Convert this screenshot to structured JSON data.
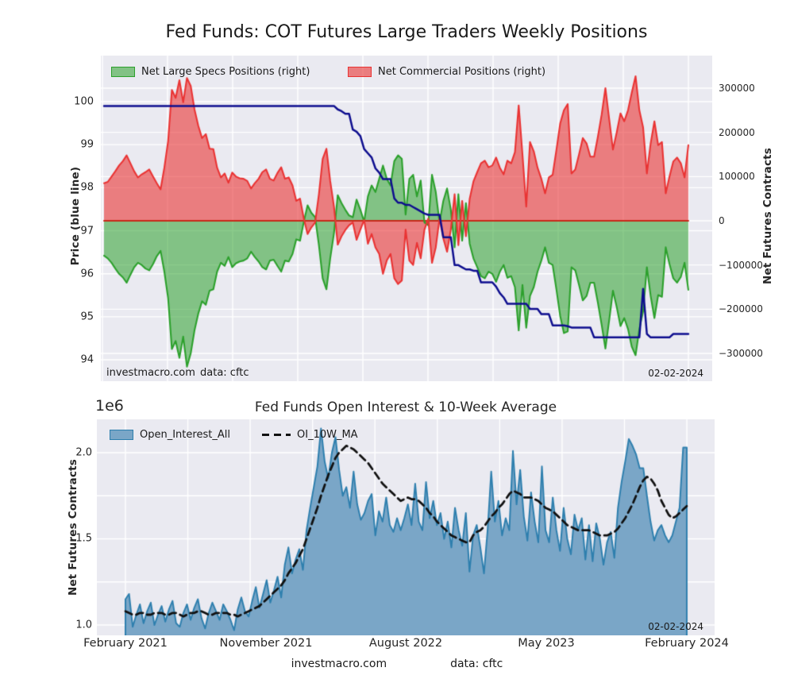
{
  "page_title": "Fed Funds: COT Futures Large Traders Weekly Positions",
  "footer": {
    "site": "investmacro.com",
    "source": "data: cftc"
  },
  "colors": {
    "plot_bg": "#eaeaf1",
    "grid": "#ffffff",
    "price_line": "#0d0d8e",
    "specs_line": "#2ca02c",
    "specs_fill": "rgba(44,160,44,0.55)",
    "commercials_line": "#e93333",
    "commercials_fill": "rgba(233,51,51,0.6)",
    "zero_line": "#c62818",
    "oi_line": "#2e7fae",
    "oi_fill": "#7aa6c7",
    "ma_line": "#111111"
  },
  "chart_data": [
    {
      "type": "area",
      "title": "Fed Funds: COT Futures Large Traders Weekly Positions",
      "ylabel_left": "Price (blue line)",
      "ylabel_right": "Net Futures Contracts",
      "yticks_left": [
        "100",
        "99",
        "98",
        "97",
        "96",
        "95",
        "94"
      ],
      "ytick_values_left": [
        100,
        99,
        98,
        97,
        96,
        95,
        94
      ],
      "yticks_right": [
        "300000",
        "200000",
        "100000",
        "0",
        "−100000",
        "−200000",
        "−300000"
      ],
      "ytick_values_right_thousands": [
        300,
        200,
        100,
        0,
        -100,
        -200,
        -300
      ],
      "x_range": "February 2021 – February 2024, weekly",
      "annotation_left": "investmacro.com",
      "annotation_source": "data: cftc",
      "annotation_date": "02-02-2024",
      "legend": [
        {
          "label": "Net Large Specs Positions (right)"
        },
        {
          "label": "Net Commercial Positions (right)"
        }
      ],
      "value_unit": "thousand contracts (right axis), price (left axis)",
      "series": [
        {
          "name": "Net Commercial Positions",
          "axis": "right",
          "values_thousands": [
            85,
            88,
            100,
            112,
            125,
            135,
            148,
            130,
            112,
            98,
            105,
            110,
            116,
            100,
            85,
            71,
            120,
            180,
            296,
            278,
            318,
            268,
            323,
            305,
            252,
            215,
            187,
            196,
            163,
            162,
            120,
            98,
            107,
            86,
            109,
            100,
            96,
            95,
            90,
            73,
            85,
            95,
            110,
            116,
            95,
            91,
            108,
            121,
            95,
            98,
            80,
            45,
            50,
            5,
            -30,
            -15,
            -4,
            60,
            140,
            163,
            90,
            32,
            -54,
            -35,
            -21,
            -10,
            -4,
            -43,
            -20,
            2,
            -52,
            -30,
            -60,
            -75,
            -120,
            -90,
            -75,
            -130,
            -143,
            -135,
            -20,
            -90,
            -100,
            -50,
            -85,
            -20,
            5,
            -95,
            -60,
            5,
            -40,
            -70,
            -20,
            60,
            -55,
            45,
            -35,
            50,
            89,
            110,
            130,
            136,
            121,
            125,
            143,
            120,
            105,
            136,
            130,
            155,
            261,
            150,
            32,
            178,
            157,
            120,
            95,
            62,
            98,
            104,
            160,
            220,
            250,
            264,
            107,
            116,
            150,
            187,
            175,
            145,
            145,
            190,
            240,
            300,
            230,
            161,
            200,
            243,
            225,
            250,
            290,
            327,
            250,
            211,
            107,
            175,
            225,
            171,
            178,
            62,
            100,
            134,
            143,
            130,
            98,
            171
          ]
        },
        {
          "name": "Net Large Specs Positions",
          "axis": "right",
          "values_thousands": [
            -79,
            -85,
            -95,
            -108,
            -120,
            -128,
            -140,
            -122,
            -105,
            -95,
            -100,
            -108,
            -112,
            -98,
            -80,
            -68,
            -115,
            -175,
            -290,
            -272,
            -310,
            -262,
            -330,
            -300,
            -248,
            -210,
            -182,
            -190,
            -158,
            -155,
            -115,
            -95,
            -102,
            -82,
            -105,
            -96,
            -92,
            -90,
            -85,
            -70,
            -82,
            -92,
            -105,
            -110,
            -90,
            -88,
            -102,
            -115,
            -90,
            -92,
            -75,
            -42,
            -45,
            -2,
            35,
            18,
            8,
            -55,
            -130,
            -155,
            -85,
            -28,
            58,
            40,
            25,
            12,
            8,
            48,
            25,
            -2,
            55,
            80,
            65,
            95,
            125,
            95,
            80,
            135,
            148,
            140,
            14,
            95,
            104,
            55,
            91,
            -4,
            -10,
            104,
            65,
            -4,
            45,
            73,
            25,
            -60,
            60,
            -45,
            40,
            -52,
            -85,
            -105,
            -125,
            -130,
            -115,
            -120,
            -138,
            -115,
            -100,
            -129,
            -125,
            -150,
            -248,
            -145,
            -242,
            -170,
            -150,
            -115,
            -90,
            -60,
            -95,
            -100,
            -155,
            -215,
            -254,
            -250,
            -105,
            -112,
            -145,
            -180,
            -170,
            -140,
            -140,
            -185,
            -235,
            -289,
            -225,
            -158,
            -195,
            -238,
            -220,
            -245,
            -285,
            -304,
            -245,
            -205,
            -105,
            -170,
            -220,
            -168,
            -172,
            -60,
            -98,
            -130,
            -140,
            -127,
            -95,
            -156
          ]
        },
        {
          "name": "Price",
          "axis": "left",
          "values": [
            99.9,
            99.9,
            99.9,
            99.9,
            99.9,
            99.9,
            99.9,
            99.9,
            99.9,
            99.9,
            99.9,
            99.9,
            99.9,
            99.9,
            99.9,
            99.9,
            99.9,
            99.9,
            99.9,
            99.9,
            99.9,
            99.9,
            99.9,
            99.9,
            99.9,
            99.9,
            99.9,
            99.9,
            99.9,
            99.9,
            99.9,
            99.9,
            99.9,
            99.9,
            99.9,
            99.9,
            99.9,
            99.9,
            99.9,
            99.9,
            99.9,
            99.9,
            99.9,
            99.9,
            99.9,
            99.9,
            99.9,
            99.9,
            99.9,
            99.9,
            99.9,
            99.9,
            99.9,
            99.9,
            99.9,
            99.9,
            99.9,
            99.9,
            99.9,
            99.9,
            99.9,
            99.9,
            99.82,
            99.78,
            99.72,
            99.72,
            99.35,
            99.3,
            99.2,
            98.9,
            98.8,
            98.7,
            98.45,
            98.35,
            98.2,
            98.2,
            98.2,
            97.75,
            97.65,
            97.65,
            97.6,
            97.6,
            97.55,
            97.5,
            97.45,
            97.4,
            97.37,
            97.37,
            97.37,
            97.37,
            96.85,
            96.85,
            96.85,
            96.2,
            96.2,
            96.15,
            96.1,
            96.1,
            96.07,
            96.07,
            95.8,
            95.8,
            95.8,
            95.8,
            95.7,
            95.55,
            95.45,
            95.3,
            95.3,
            95.3,
            95.3,
            95.3,
            95.3,
            95.18,
            95.18,
            95.18,
            95.06,
            95.06,
            95.06,
            94.8,
            94.8,
            94.8,
            94.8,
            94.78,
            94.75,
            94.75,
            94.75,
            94.75,
            94.75,
            94.75,
            94.52,
            94.52,
            94.52,
            94.52,
            94.52,
            94.52,
            94.52,
            94.52,
            94.52,
            94.52,
            94.52,
            94.52,
            94.52,
            95.65,
            94.6,
            94.52,
            94.52,
            94.52,
            94.52,
            94.52,
            94.52,
            94.6,
            94.6,
            94.6,
            94.6,
            94.6
          ]
        }
      ]
    },
    {
      "type": "area",
      "title": "Fed Funds Open Interest & 10-Week Average",
      "offset_text": "1e6",
      "ylabel": "Net Futures Contracts",
      "yticks": [
        "2.0",
        "1.5",
        "1.0"
      ],
      "ytick_values": [
        2.0,
        1.5,
        1.0
      ],
      "grid_y_values": [
        2.0,
        1.75,
        1.5,
        1.25,
        1.0
      ],
      "xticks": [
        "February 2021",
        "November 2021",
        "August 2022",
        "May 2023",
        "February 2024"
      ],
      "annotation_date": "02-02-2024",
      "legend": [
        {
          "label": "Open_Interest_All"
        },
        {
          "label": "OI_10W_MA"
        }
      ],
      "value_unit": "million contracts",
      "series": [
        {
          "name": "Open_Interest_All",
          "values_millions": [
            1.15,
            1.18,
            0.99,
            1.06,
            1.12,
            1.01,
            1.08,
            1.13,
            1.0,
            1.06,
            1.11,
            1.02,
            1.09,
            1.14,
            1.01,
            0.99,
            1.07,
            1.12,
            1.03,
            1.1,
            1.15,
            1.04,
            0.98,
            1.07,
            1.13,
            1.08,
            1.03,
            1.12,
            1.08,
            1.03,
            0.97,
            1.09,
            1.16,
            1.08,
            1.05,
            1.14,
            1.22,
            1.1,
            1.18,
            1.26,
            1.13,
            1.2,
            1.28,
            1.16,
            1.35,
            1.45,
            1.3,
            1.38,
            1.44,
            1.32,
            1.55,
            1.68,
            1.8,
            1.92,
            2.14,
            1.95,
            1.85,
            2.0,
            2.09,
            1.9,
            1.75,
            1.8,
            1.68,
            1.89,
            1.7,
            1.61,
            1.65,
            1.72,
            1.76,
            1.52,
            1.66,
            1.6,
            1.74,
            1.58,
            1.54,
            1.62,
            1.55,
            1.62,
            1.7,
            1.58,
            1.82,
            1.6,
            1.55,
            1.83,
            1.62,
            1.72,
            1.58,
            1.65,
            1.5,
            1.6,
            1.45,
            1.68,
            1.55,
            1.46,
            1.65,
            1.31,
            1.52,
            1.58,
            1.45,
            1.3,
            1.55,
            1.89,
            1.6,
            1.72,
            1.52,
            1.62,
            1.55,
            2.01,
            1.7,
            1.9,
            1.63,
            1.49,
            1.77,
            1.6,
            1.48,
            1.92,
            1.55,
            1.48,
            1.74,
            1.55,
            1.43,
            1.68,
            1.5,
            1.41,
            1.64,
            1.55,
            1.62,
            1.38,
            1.58,
            1.37,
            1.59,
            1.5,
            1.35,
            1.48,
            1.54,
            1.39,
            1.68,
            1.83,
            1.95,
            2.08,
            2.04,
            1.99,
            1.91,
            1.91,
            1.75,
            1.6,
            1.49,
            1.55,
            1.58,
            1.52,
            1.48,
            1.52,
            1.6,
            1.68,
            2.03,
            2.03
          ]
        },
        {
          "name": "OI_10W_MA",
          "values_millions": [
            1.08,
            1.07,
            1.06,
            1.06,
            1.07,
            1.07,
            1.06,
            1.06,
            1.07,
            1.07,
            1.07,
            1.06,
            1.06,
            1.07,
            1.07,
            1.06,
            1.05,
            1.06,
            1.07,
            1.07,
            1.08,
            1.08,
            1.07,
            1.06,
            1.06,
            1.07,
            1.07,
            1.07,
            1.07,
            1.06,
            1.06,
            1.05,
            1.06,
            1.07,
            1.08,
            1.09,
            1.1,
            1.11,
            1.13,
            1.15,
            1.17,
            1.19,
            1.21,
            1.23,
            1.26,
            1.3,
            1.33,
            1.36,
            1.4,
            1.44,
            1.5,
            1.56,
            1.62,
            1.68,
            1.75,
            1.81,
            1.87,
            1.92,
            1.97,
            2.0,
            2.02,
            2.04,
            2.03,
            2.02,
            2.0,
            1.98,
            1.96,
            1.94,
            1.91,
            1.88,
            1.85,
            1.82,
            1.8,
            1.78,
            1.76,
            1.74,
            1.72,
            1.73,
            1.74,
            1.73,
            1.73,
            1.72,
            1.7,
            1.68,
            1.65,
            1.63,
            1.6,
            1.58,
            1.56,
            1.54,
            1.52,
            1.51,
            1.5,
            1.49,
            1.48,
            1.48,
            1.52,
            1.54,
            1.55,
            1.57,
            1.6,
            1.63,
            1.65,
            1.68,
            1.7,
            1.73,
            1.76,
            1.78,
            1.77,
            1.76,
            1.74,
            1.74,
            1.74,
            1.73,
            1.72,
            1.7,
            1.68,
            1.67,
            1.66,
            1.64,
            1.62,
            1.6,
            1.58,
            1.57,
            1.56,
            1.55,
            1.55,
            1.55,
            1.55,
            1.54,
            1.53,
            1.52,
            1.52,
            1.52,
            1.53,
            1.54,
            1.56,
            1.59,
            1.62,
            1.66,
            1.7,
            1.75,
            1.8,
            1.84,
            1.86,
            1.85,
            1.82,
            1.78,
            1.72,
            1.68,
            1.64,
            1.62,
            1.63,
            1.65,
            1.67,
            1.69
          ]
        }
      ]
    }
  ]
}
